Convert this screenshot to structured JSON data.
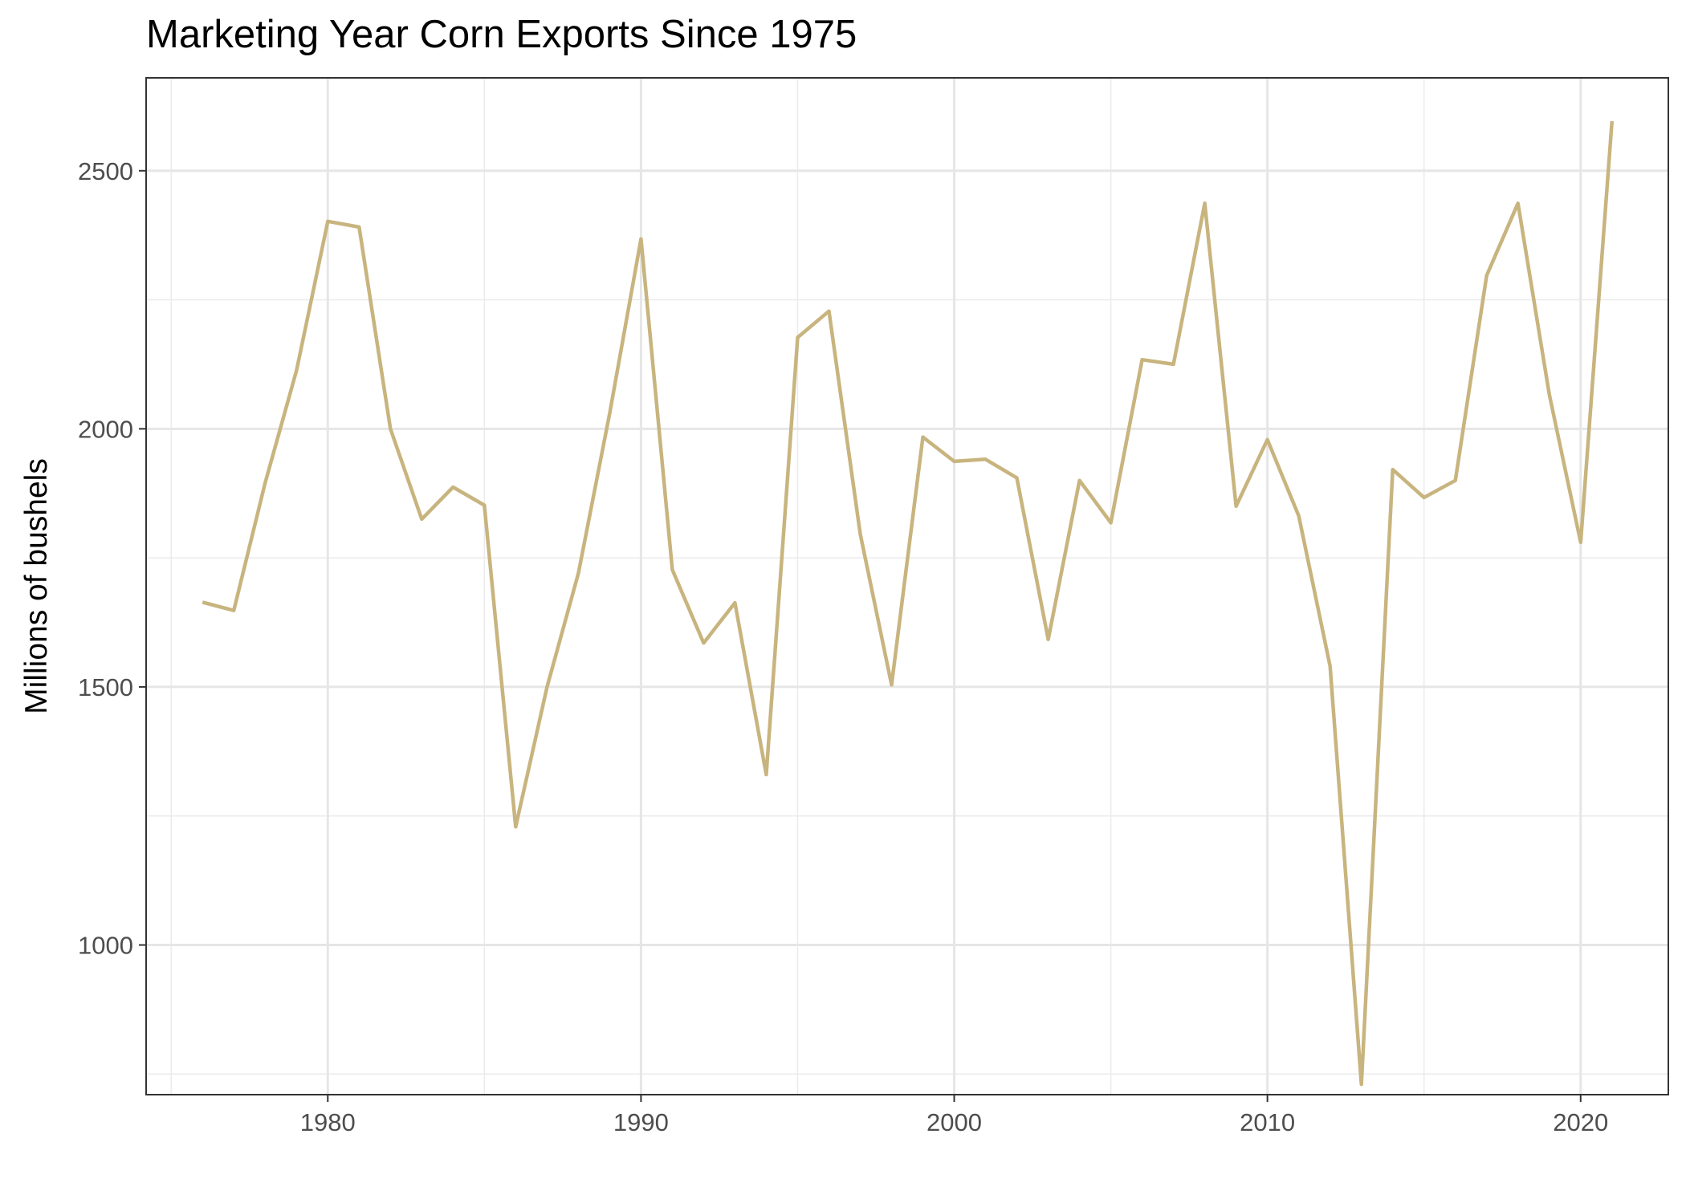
{
  "chart_data": {
    "type": "line",
    "title": "Marketing Year Corn Exports Since 1975",
    "xlabel": "",
    "ylabel": "Millions of bushels",
    "xlim": [
      1974.2,
      2022.8
    ],
    "ylim": [
      710,
      2680
    ],
    "x_ticks": [
      1980,
      1990,
      2000,
      2010,
      2020
    ],
    "y_ticks": [
      1000,
      1500,
      2000,
      2500
    ],
    "grid": true,
    "line_color": "#c8b47e",
    "x": [
      1976,
      1977,
      1978,
      1979,
      1980,
      1981,
      1982,
      1983,
      1984,
      1985,
      1986,
      1987,
      1988,
      1989,
      1990,
      1991,
      1992,
      1993,
      1994,
      1995,
      1996,
      1997,
      1998,
      1999,
      2000,
      2001,
      2002,
      2003,
      2004,
      2005,
      2006,
      2007,
      2008,
      2009,
      2010,
      2011,
      2012,
      2013,
      2014,
      2015,
      2016,
      2017,
      2018,
      2019,
      2020,
      2021
    ],
    "y": [
      1664,
      1648,
      1895,
      2113,
      2402,
      2391,
      2000,
      1825,
      1887,
      1852,
      1229,
      1500,
      1720,
      2030,
      2368,
      1727,
      1585,
      1663,
      1330,
      2177,
      2228,
      1796,
      1504,
      1984,
      1937,
      1941,
      1905,
      1592,
      1900,
      1818,
      2134,
      2125,
      2437,
      1850,
      1979,
      1831,
      1540,
      730,
      1921,
      1867,
      1900,
      2297,
      2437,
      2066,
      1780,
      2596
    ]
  }
}
